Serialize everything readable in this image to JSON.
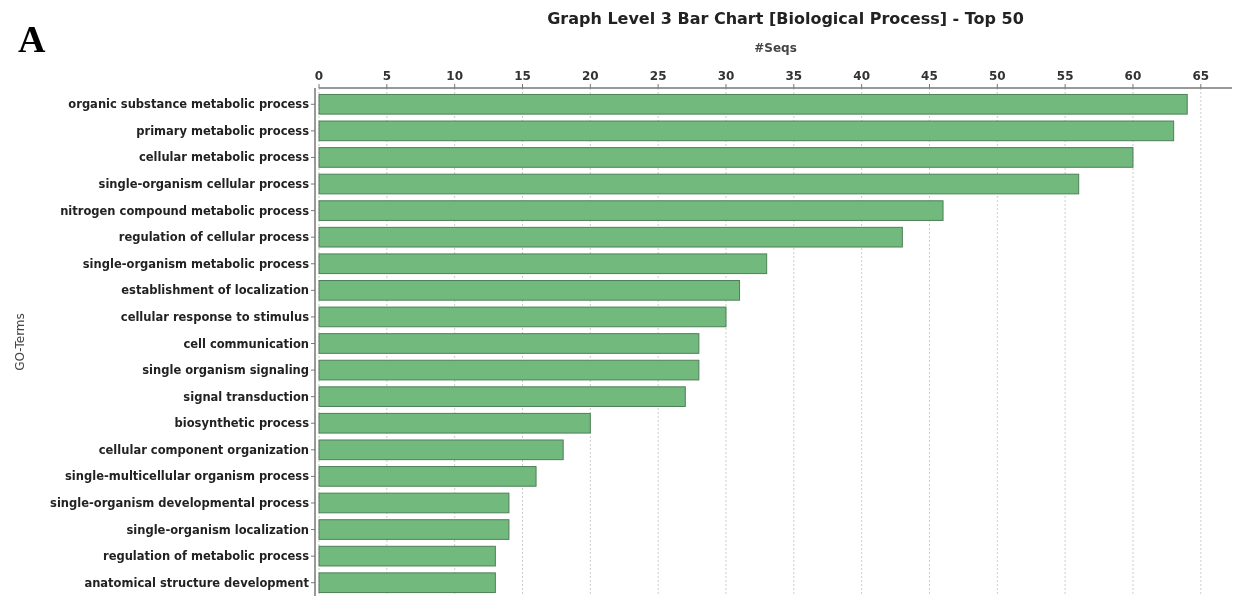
{
  "chart_data": {
    "type": "bar",
    "orientation": "horizontal",
    "title": "Graph Level 3 Bar Chart [Biological Process] - Top 50",
    "xlabel": "#Seqs",
    "ylabel": "GO-Terms",
    "annotations": [
      "A"
    ],
    "categories": [
      "organic substance metabolic process",
      "primary metabolic process",
      "cellular metabolic process",
      "single-organism cellular process",
      "nitrogen compound metabolic process",
      "regulation of cellular process",
      "single-organism metabolic process",
      "establishment of localization",
      "cellular response to stimulus",
      "cell communication",
      "single organism signaling",
      "signal transduction",
      "biosynthetic process",
      "cellular component organization",
      "single-multicellular organism process",
      "single-organism developmental process",
      "single-organism localization",
      "regulation of metabolic process",
      "anatomical structure development"
    ],
    "values": [
      64,
      63,
      60,
      56,
      46,
      43,
      33,
      31,
      30,
      28,
      28,
      27,
      20,
      18,
      16,
      14,
      14,
      13,
      13
    ],
    "color": "#72b97e",
    "xlim": [
      0,
      67.3
    ],
    "xticks": [
      0,
      5,
      10,
      15,
      20,
      25,
      30,
      35,
      40,
      45,
      50,
      55,
      60,
      65
    ],
    "grid": "x"
  }
}
